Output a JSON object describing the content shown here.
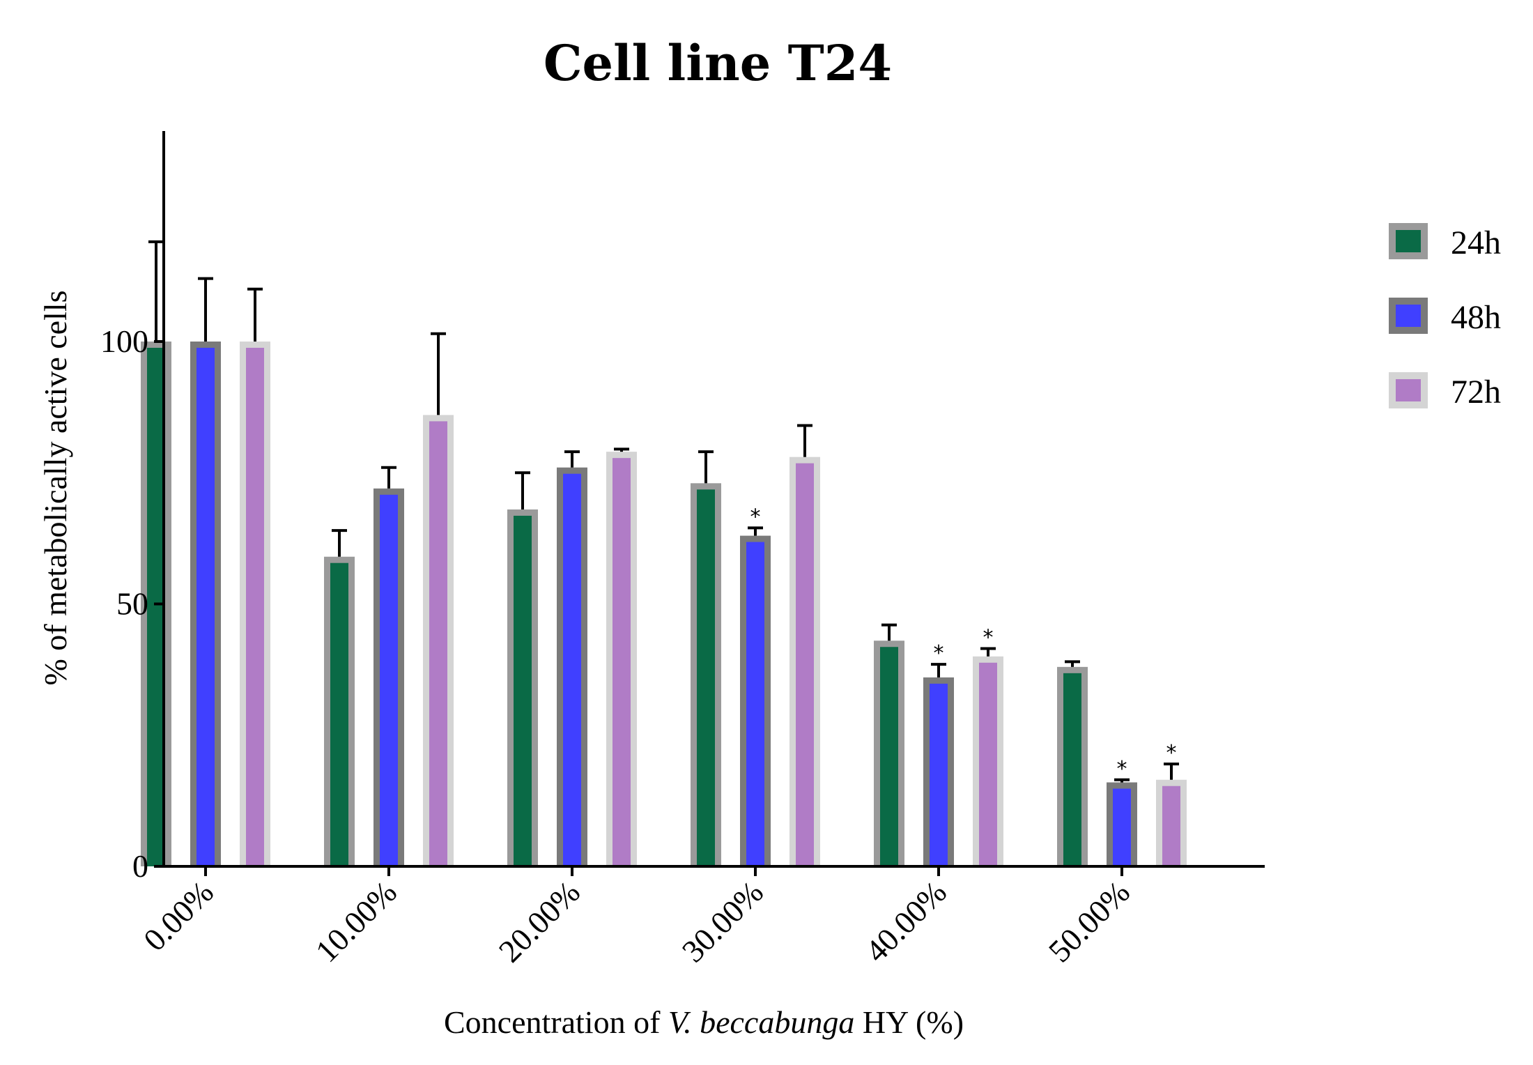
{
  "chart_data": {
    "type": "bar",
    "title": "Cell line T24",
    "xlabel_parts": [
      "Concentration of ",
      "V. beccabunga",
      " HY (%)"
    ],
    "ylabel": "% of metabolically active cells",
    "categories": [
      "0.00%",
      "10.00%",
      "20.00%",
      "30.00%",
      "40.00%",
      "50.00%"
    ],
    "ylim": [
      0,
      140
    ],
    "yticks": [
      0,
      50,
      100
    ],
    "series": [
      {
        "name": "24h",
        "fill": "#0a6a46",
        "border": "#9a9a9a",
        "values": [
          100,
          59,
          68,
          73,
          43,
          38
        ],
        "errors": [
          19,
          5,
          7,
          6,
          3,
          1
        ],
        "significant": [
          false,
          false,
          false,
          false,
          false,
          false
        ]
      },
      {
        "name": "48h",
        "fill": "#4040ff",
        "border": "#7a7a7a",
        "values": [
          100,
          72,
          76,
          63,
          36,
          16
        ],
        "errors": [
          12,
          4,
          3,
          1.5,
          2.5,
          0.5
        ],
        "significant": [
          false,
          false,
          false,
          true,
          true,
          true
        ]
      },
      {
        "name": "72h",
        "fill": "#b07cc6",
        "border": "#d4d4d4",
        "values": [
          100,
          86,
          79,
          78,
          40,
          16.5
        ],
        "errors": [
          10,
          15.5,
          0.5,
          6,
          1.5,
          3
        ],
        "significant": [
          false,
          false,
          false,
          false,
          true,
          true
        ]
      }
    ],
    "significance_marker": "*",
    "legend_position": "right"
  }
}
